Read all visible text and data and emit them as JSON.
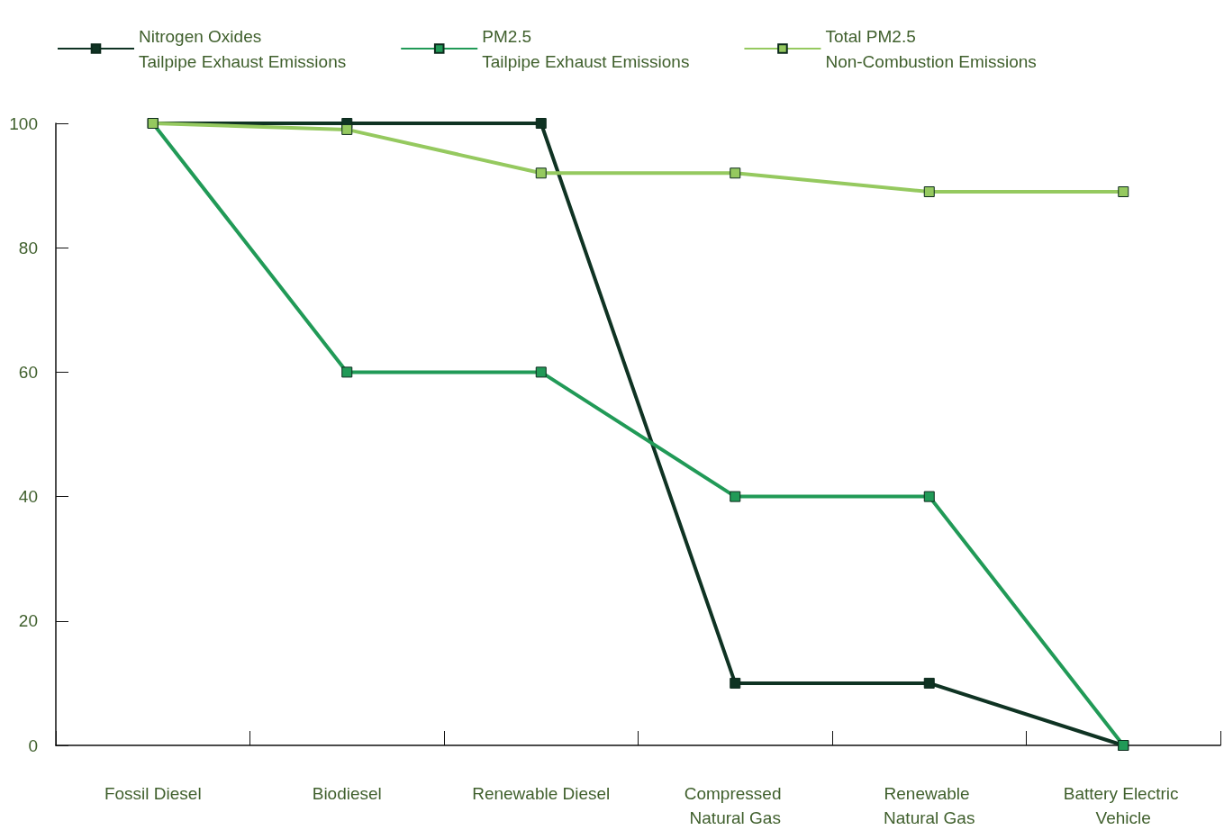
{
  "chart_data": {
    "type": "line",
    "categories": [
      "Fossil Diesel",
      "Biodiesel",
      "Renewable Diesel",
      "Compressed Natural Gas",
      "Renewable Natural Gas",
      "Battery Electric Vehicle"
    ],
    "series": [
      {
        "name": "Nitrogen Oxides\nTailpipe Exhaust Emissions",
        "color": "#0f3323",
        "values": [
          100,
          100,
          100,
          10,
          10,
          0
        ]
      },
      {
        "name": "PM2.5\nTailpipe Exhaust Emissions",
        "color": "#219a57",
        "values": [
          100,
          60,
          60,
          40,
          40,
          0
        ]
      },
      {
        "name": "Total PM2.5\nNon-Combustion Emissions",
        "color": "#95c95f",
        "values": [
          100,
          99,
          92,
          92,
          89,
          89
        ]
      }
    ],
    "ylim": [
      0,
      100
    ],
    "yticks": [
      0,
      20,
      40,
      60,
      80,
      100
    ],
    "grid": false,
    "legend": "top left",
    "marker": "square",
    "line_style": "solid"
  }
}
